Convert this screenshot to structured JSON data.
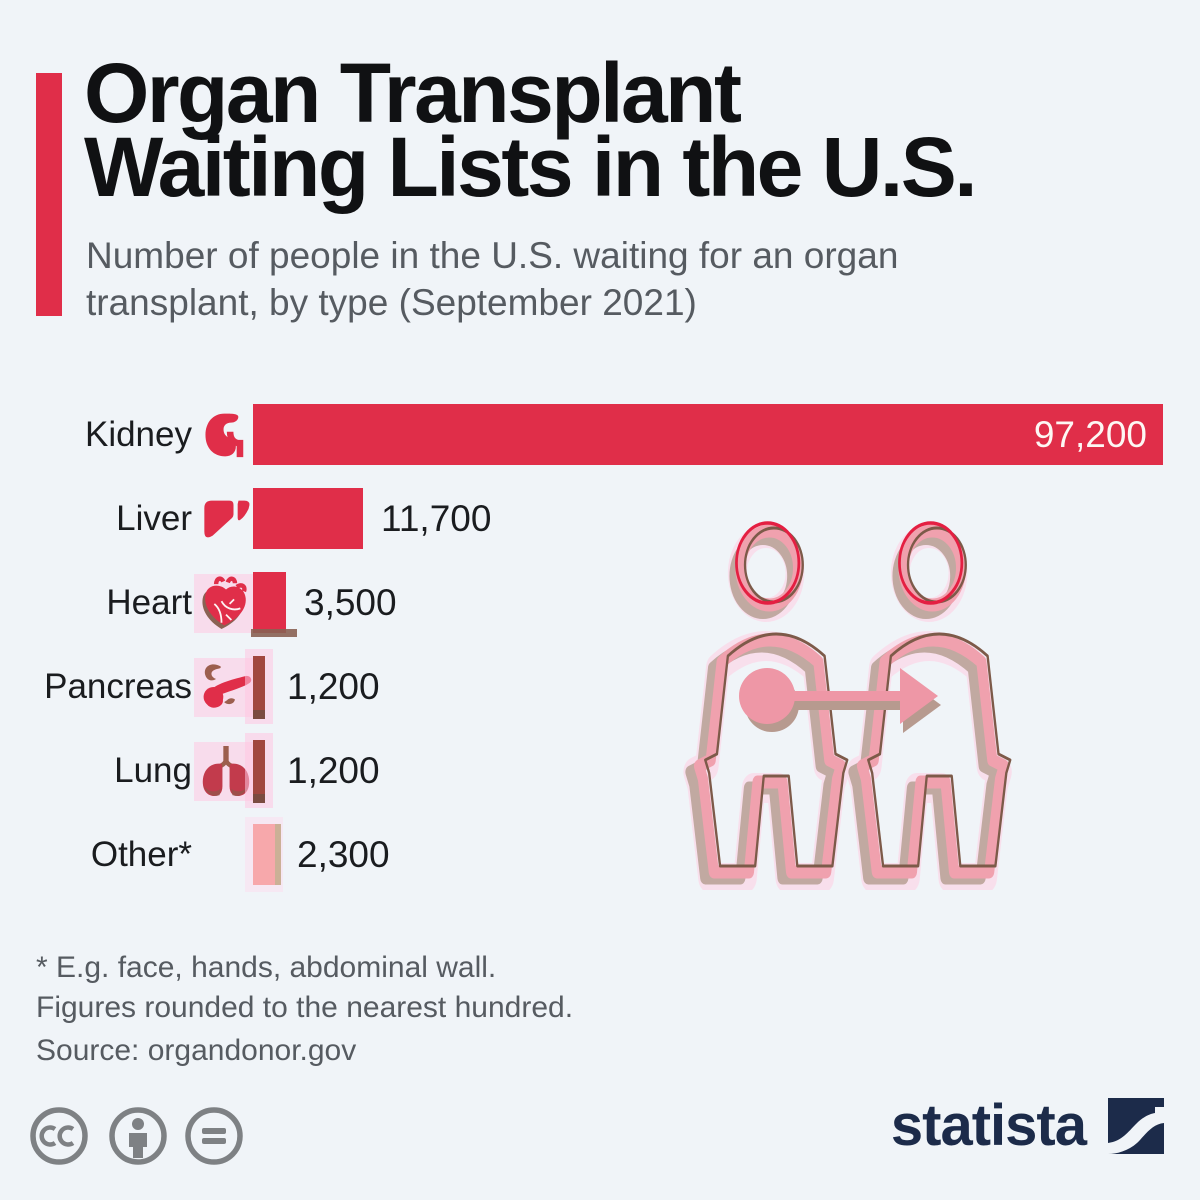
{
  "header": {
    "accent_color": "#e02e49",
    "title_lines": [
      "Organ Transplant",
      "Waiting Lists in the U.S."
    ],
    "subtitle_lines": [
      "Number of people in the U.S. waiting for an organ",
      "transplant, by type (September 2021)"
    ]
  },
  "chart_data": {
    "type": "bar",
    "orientation": "horizontal",
    "title": "Organ Transplant Waiting Lists in the U.S.",
    "subtitle": "Number of people in the U.S. waiting for an organ transplant, by type (September 2021)",
    "categories": [
      "Kidney",
      "Liver",
      "Heart",
      "Pancreas",
      "Lung",
      "Other*"
    ],
    "values": [
      97200,
      11700,
      3500,
      1200,
      1200,
      2300
    ],
    "value_labels": [
      "97,200",
      "11,700",
      "3,500",
      "1,200",
      "1,200",
      "2,300"
    ],
    "xlim": [
      0,
      97200
    ],
    "grid": false,
    "legend": "none",
    "bar_colors": [
      "#e02e49",
      "#e02e49",
      "#e02e49",
      "#a1473f",
      "#a1473f",
      "#f7a8ab"
    ],
    "icons": [
      "kidney-icon",
      "liver-icon",
      "heart-icon",
      "pancreas-icon",
      "lung-icon",
      null
    ]
  },
  "footnotes": {
    "note1": "* E.g. face, hands, abdominal wall.",
    "note2": "Figures rounded to the nearest hundred.",
    "source": "Source: organdonor.gov"
  },
  "branding": {
    "logo_text": "statista",
    "logo_color": "#1c2b4a"
  },
  "license": {
    "icons": [
      "cc-icon",
      "cc-by-person-icon",
      "cc-nd-equals-icon"
    ],
    "icon_color": "#7e8184"
  },
  "illustration": {
    "name": "organ-donation-between-two-people",
    "pink": "#f0a1ae",
    "glow": "#fbd8e8",
    "outline_brown": "#7d5a49",
    "outline_red": "#e41f42",
    "shadow": "#c1a9a1",
    "arrow": "#ee97a6"
  },
  "background": "#f0f4f8"
}
